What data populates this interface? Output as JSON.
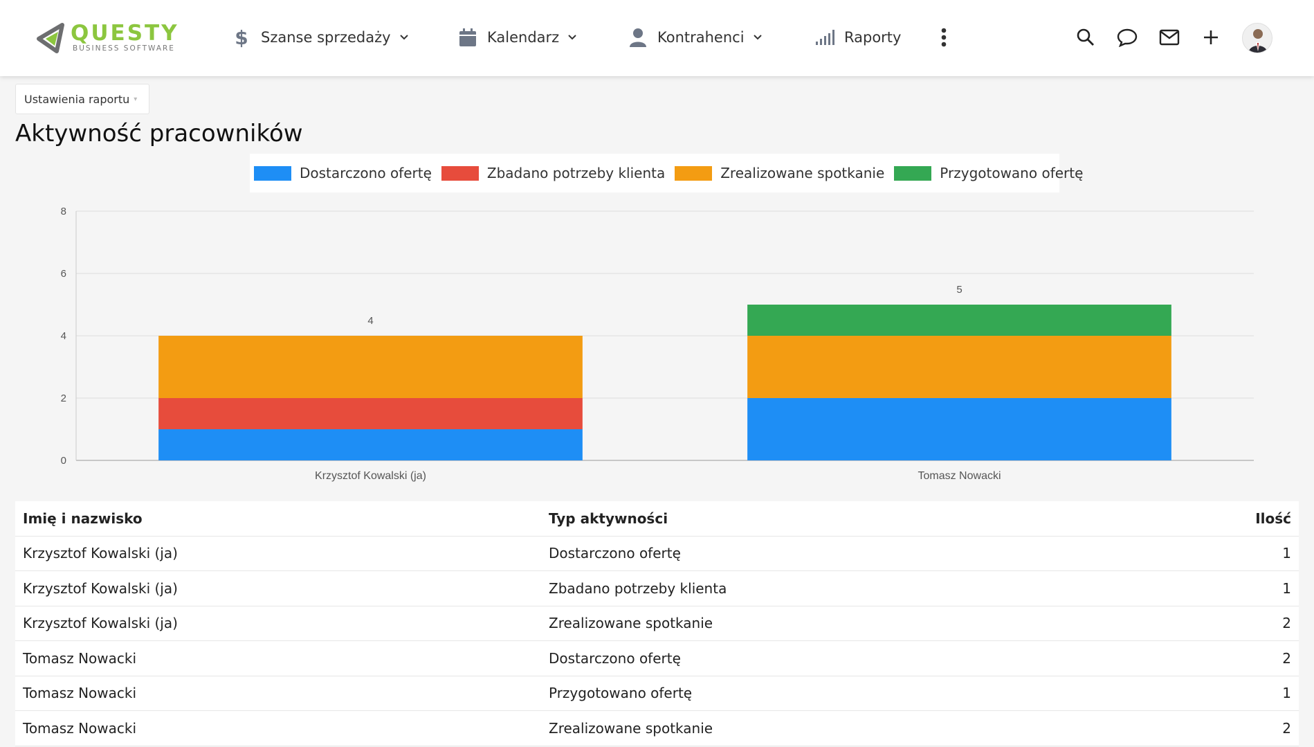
{
  "brand": {
    "name": "QUESTY",
    "tagline": "BUSINESS SOFTWARE",
    "accent": "#8cc63f"
  },
  "nav": [
    {
      "icon": "dollar-icon",
      "label": "Szanse sprzedaży",
      "dropdown": true
    },
    {
      "icon": "calendar-icon",
      "label": "Kalendarz",
      "dropdown": true
    },
    {
      "icon": "user-icon",
      "label": "Kontrahenci",
      "dropdown": true
    },
    {
      "icon": "bar-signal-icon",
      "label": "Raporty",
      "dropdown": false
    }
  ],
  "header_icons": [
    "more-vertical-icon",
    "search-icon",
    "chat-icon",
    "mail-icon",
    "plus-icon",
    "avatar"
  ],
  "report_settings": {
    "label": "Ustawienia raportu"
  },
  "page": {
    "title": "Aktywność pracowników"
  },
  "chart_data": {
    "type": "bar",
    "stacked": true,
    "categories": [
      "Krzysztof Kowalski (ja)",
      "Tomasz Nowacki"
    ],
    "series": [
      {
        "name": "Dostarczono ofertę",
        "color": "#1e8ef5",
        "values": [
          1,
          2
        ]
      },
      {
        "name": "Zbadano potrzeby klienta",
        "color": "#e74c3c",
        "values": [
          1,
          0
        ]
      },
      {
        "name": "Zrealizowane spotkanie",
        "color": "#f39c12",
        "values": [
          2,
          2
        ]
      },
      {
        "name": "Przygotowano ofertę",
        "color": "#34a853",
        "values": [
          0,
          1
        ]
      }
    ],
    "totals": [
      4,
      5
    ],
    "ylim": [
      0,
      8
    ],
    "yticks": [
      0,
      2,
      4,
      6,
      8
    ],
    "grid": true,
    "legend": "top"
  },
  "table": {
    "headers": {
      "name": "Imię i nazwisko",
      "type": "Typ aktywności",
      "count": "Ilość"
    },
    "rows": [
      {
        "name": "Krzysztof Kowalski (ja)",
        "type": "Dostarczono ofertę",
        "count": "1"
      },
      {
        "name": "Krzysztof Kowalski (ja)",
        "type": "Zbadano potrzeby klienta",
        "count": "1"
      },
      {
        "name": "Krzysztof Kowalski (ja)",
        "type": "Zrealizowane spotkanie",
        "count": "2"
      },
      {
        "name": "Tomasz Nowacki",
        "type": "Dostarczono ofertę",
        "count": "2"
      },
      {
        "name": "Tomasz Nowacki",
        "type": "Przygotowano ofertę",
        "count": "1"
      },
      {
        "name": "Tomasz Nowacki",
        "type": "Zrealizowane spotkanie",
        "count": "2"
      }
    ]
  }
}
